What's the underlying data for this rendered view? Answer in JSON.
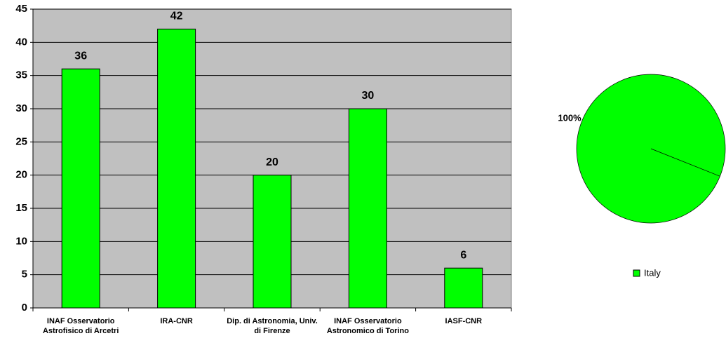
{
  "chart_data": [
    {
      "type": "bar",
      "categories": [
        "INAF Osservatorio Astrofisico di Arcetri",
        "IRA-CNR",
        "Dip. di Astronomia, Univ. di Firenze",
        "INAF Osservatorio Astronomico di Torino",
        "IASF-CNR"
      ],
      "values": [
        36,
        42,
        20,
        30,
        6
      ],
      "color": "#00ff00",
      "ylim": [
        0,
        45
      ],
      "yticks": [
        0,
        5,
        10,
        15,
        20,
        25,
        30,
        35,
        40,
        45
      ],
      "grid": true
    },
    {
      "type": "pie",
      "categories": [
        "Italy"
      ],
      "values": [
        100
      ],
      "value_labels": [
        "100%"
      ],
      "colors": [
        "#00ff00"
      ],
      "legend": "bottom"
    }
  ]
}
